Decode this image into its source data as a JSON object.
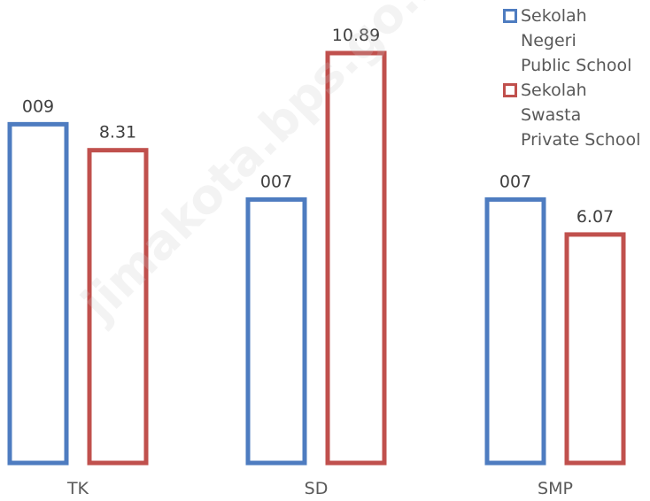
{
  "chart_data": {
    "type": "bar",
    "categories": [
      "TK",
      "SD",
      "SMP"
    ],
    "series": [
      {
        "name": "Sekolah Negeri Public School",
        "name_lines": [
          "Sekolah",
          "Negeri",
          "Public School"
        ],
        "values": [
          9,
          7,
          7
        ],
        "labels": [
          "009",
          "007",
          "007"
        ],
        "color": "#4e7cc0"
      },
      {
        "name": "Sekolah Swasta Private School",
        "name_lines": [
          "Sekolah",
          "Swasta",
          "Private School"
        ],
        "values": [
          8.31,
          10.89,
          6.07
        ],
        "labels": [
          "8.31",
          "10.89",
          "6.07"
        ],
        "color": "#c0504d"
      }
    ],
    "ylim": [
      0,
      11.9
    ],
    "grid": false,
    "legend": "top-right"
  },
  "watermark": "jimakota.bps.go.id"
}
